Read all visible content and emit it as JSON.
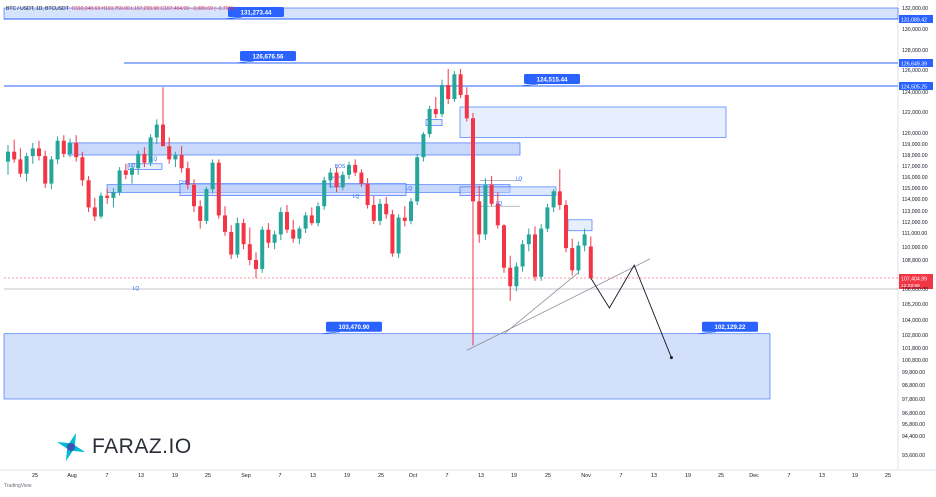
{
  "header": {
    "symbol": "BTC / USDT, 1D, BTCUSDT",
    "ohlc": "O110,040.69 H110,750.00 L107,299.98 C107,404.99 −3,089.69 (−2.79%)"
  },
  "brand": {
    "name": "FARAZ.IO",
    "tv_label": "TradingView"
  },
  "colors": {
    "up": "#26a69a",
    "down": "#f23645",
    "zone_fill": "#bbd0fb",
    "zone_stroke": "#2962ff",
    "label_bg": "#2962ff",
    "level_line": "#2962ff",
    "trendline": "#8c8f99",
    "proj": "#131722"
  },
  "chart_data": {
    "type": "candlestick",
    "title": "",
    "xlabel": "",
    "ylabel": "",
    "ylim": [
      93600,
      132000
    ],
    "y_ticks": [
      "132,000.00",
      "131,089.42",
      "130,000.00",
      "128,000.00",
      "126,649.39",
      "126,000.00",
      "124,505.25",
      "124,000.00",
      "122,000.00",
      "120,000.00",
      "119,000.00",
      "118,000.00",
      "117,000.00",
      "116,000.00",
      "115,000.00",
      "114,000.00",
      "113,000.00",
      "112,000.00",
      "111,000.00",
      "110,000.00",
      "108,800.00",
      "107,404.99",
      "106,600.00",
      "105,200.00",
      "104,000.00",
      "102,800.00",
      "101,800.00",
      "100,800.00",
      "99,800.00",
      "98,800.00",
      "97,800.00",
      "96,800.00",
      "95,800.00",
      "94,400.00",
      "93,600.00"
    ],
    "y_tick_values": [
      132000,
      131089.42,
      130000,
      128000,
      126649.39,
      126000,
      124505.25,
      124000,
      122000,
      120000,
      119000,
      118000,
      117000,
      116000,
      115000,
      114000,
      113000,
      112000,
      111000,
      110000,
      108800,
      107404.99,
      106600,
      105200,
      104000,
      102800,
      101800,
      100800,
      99800,
      98800,
      97800,
      96800,
      95800,
      94400,
      93600
    ],
    "price_badge": {
      "value": "107,404.99",
      "countdown": "12:29:59"
    },
    "x_ticks": [
      "25",
      "Aug",
      "7",
      "13",
      "19",
      "25",
      "Sep",
      "7",
      "13",
      "19",
      "25",
      "Oct",
      "7",
      "13",
      "19",
      "25",
      "Nov",
      "7",
      "13",
      "19",
      "25",
      "Dec",
      "7",
      "13",
      "19",
      "25"
    ],
    "x_tick_index": [
      0,
      1,
      2,
      3,
      4,
      5,
      6,
      7,
      8,
      9,
      10,
      11,
      12,
      13,
      14,
      15,
      16,
      17,
      18,
      19,
      20,
      21,
      22,
      23,
      24,
      25
    ],
    "levels": [
      {
        "label": "131,273.44",
        "price": 131273.44
      },
      {
        "label": "126,676.56",
        "price": 126676.56
      },
      {
        "label": "124,515.44",
        "price": 124515.44
      }
    ],
    "targets": [
      {
        "label": "103,470.90",
        "price": 103470.9
      },
      {
        "label": "102,129.22",
        "price": 102129.22
      }
    ],
    "annotations": [
      "LQ",
      "LQ",
      "LQ",
      "LQ",
      "LQ",
      "LQ",
      "CHC",
      "BOS",
      "LQ"
    ],
    "candles": [
      [
        117400,
        118900,
        116200,
        118300
      ],
      [
        118300,
        119400,
        117300,
        117600
      ],
      [
        117600,
        118600,
        116000,
        116300
      ],
      [
        116300,
        118200,
        115600,
        117900
      ],
      [
        117900,
        119100,
        117200,
        118600
      ],
      [
        118600,
        119300,
        117500,
        117900
      ],
      [
        117900,
        118400,
        115000,
        115400
      ],
      [
        115400,
        117900,
        114900,
        117600
      ],
      [
        117600,
        119700,
        117200,
        119300
      ],
      [
        119300,
        119800,
        117800,
        118100
      ],
      [
        118100,
        119500,
        117800,
        119100
      ],
      [
        119100,
        119800,
        117400,
        117800
      ],
      [
        117800,
        118300,
        115200,
        115700
      ],
      [
        115700,
        116100,
        112900,
        113300
      ],
      [
        113300,
        114100,
        112100,
        112500
      ],
      [
        112500,
        114600,
        112300,
        114300
      ],
      [
        114300,
        114900,
        113600,
        114100
      ],
      [
        114100,
        115000,
        113300,
        114600
      ],
      [
        114600,
        116900,
        114300,
        116600
      ],
      [
        116600,
        117200,
        115800,
        116200
      ],
      [
        116200,
        117200,
        115400,
        116800
      ],
      [
        116800,
        118400,
        116200,
        118100
      ],
      [
        118100,
        118700,
        116900,
        117300
      ],
      [
        117300,
        119900,
        117000,
        119600
      ],
      [
        119600,
        121300,
        119000,
        120800
      ],
      [
        120800,
        124400,
        118900,
        118800
      ],
      [
        118800,
        119600,
        117200,
        117600
      ],
      [
        117600,
        118300,
        116900,
        118000
      ],
      [
        118000,
        118800,
        116400,
        116800
      ],
      [
        116800,
        117400,
        114900,
        115300
      ],
      [
        115300,
        115800,
        112900,
        113400
      ],
      [
        113400,
        113900,
        111400,
        112100
      ],
      [
        112100,
        115100,
        111800,
        114900
      ],
      [
        114900,
        117600,
        114500,
        117300
      ],
      [
        117300,
        117600,
        112300,
        112600
      ],
      [
        112600,
        113400,
        110800,
        111100
      ],
      [
        111100,
        111700,
        108900,
        109300
      ],
      [
        109300,
        112400,
        109000,
        111900
      ],
      [
        111900,
        112300,
        109800,
        110200
      ],
      [
        110200,
        111500,
        108400,
        108800
      ],
      [
        108800,
        109500,
        107400,
        108100
      ],
      [
        108100,
        111600,
        107800,
        111300
      ],
      [
        111300,
        111900,
        109900,
        110300
      ],
      [
        110300,
        111200,
        109800,
        110900
      ],
      [
        110900,
        113300,
        110500,
        112900
      ],
      [
        112900,
        113500,
        111000,
        111300
      ],
      [
        111300,
        112200,
        110300,
        110600
      ],
      [
        110600,
        111600,
        110200,
        111400
      ],
      [
        111400,
        112900,
        111000,
        112600
      ],
      [
        112600,
        113300,
        111700,
        111900
      ],
      [
        111900,
        113700,
        111600,
        113400
      ],
      [
        113400,
        116000,
        113100,
        115700
      ],
      [
        115700,
        116800,
        115000,
        116400
      ],
      [
        116400,
        116900,
        114600,
        115100
      ],
      [
        115100,
        116500,
        114800,
        116200
      ],
      [
        116200,
        117400,
        115800,
        117100
      ],
      [
        117100,
        117600,
        116100,
        116400
      ],
      [
        116400,
        116700,
        115100,
        115400
      ],
      [
        115400,
        115900,
        113200,
        113500
      ],
      [
        113500,
        114300,
        111800,
        112100
      ],
      [
        112100,
        114000,
        111700,
        113600
      ],
      [
        113600,
        114200,
        112300,
        112700
      ],
      [
        112700,
        113100,
        109100,
        109400
      ],
      [
        109400,
        112700,
        109000,
        112400
      ],
      [
        112400,
        113400,
        111600,
        112100
      ],
      [
        112100,
        114100,
        111800,
        113800
      ],
      [
        113800,
        118100,
        113500,
        117800
      ],
      [
        117800,
        120100,
        117400,
        119900
      ],
      [
        119900,
        122600,
        119600,
        122300
      ],
      [
        122300,
        123500,
        121400,
        121800
      ],
      [
        121800,
        125100,
        121500,
        124600
      ],
      [
        124600,
        126100,
        122800,
        123300
      ],
      [
        123300,
        125900,
        123000,
        125600
      ],
      [
        125600,
        126100,
        123400,
        123700
      ],
      [
        123700,
        124400,
        121100,
        121400
      ],
      [
        121400,
        121900,
        102000,
        113800
      ],
      [
        113800,
        115200,
        110300,
        110900
      ],
      [
        110900,
        115900,
        110500,
        115300
      ],
      [
        115300,
        116100,
        113400,
        113600
      ],
      [
        113600,
        114600,
        111400,
        111700
      ],
      [
        111700,
        111800,
        107800,
        108200
      ],
      [
        108200,
        109200,
        105500,
        106800
      ],
      [
        106800,
        108600,
        106400,
        108300
      ],
      [
        108300,
        110500,
        107900,
        110200
      ],
      [
        110200,
        111400,
        109600,
        110900
      ],
      [
        110900,
        111600,
        107200,
        107500
      ],
      [
        107500,
        111800,
        107200,
        111400
      ],
      [
        111400,
        113600,
        111100,
        113300
      ],
      [
        113300,
        114900,
        112900,
        114700
      ],
      [
        114700,
        116700,
        113100,
        113500
      ],
      [
        113500,
        113900,
        109500,
        109900
      ],
      [
        109900,
        110600,
        107600,
        108000
      ],
      [
        108000,
        110400,
        107700,
        110100
      ],
      [
        110100,
        111400,
        109600,
        110900
      ],
      [
        110040,
        110750,
        107300,
        107405
      ]
    ],
    "projection": [
      {
        "index": 94,
        "price": 107405
      },
      {
        "index": 97,
        "price": 104900
      },
      {
        "index": 101,
        "price": 108400
      },
      {
        "index": 107,
        "price": 101000
      }
    ]
  }
}
